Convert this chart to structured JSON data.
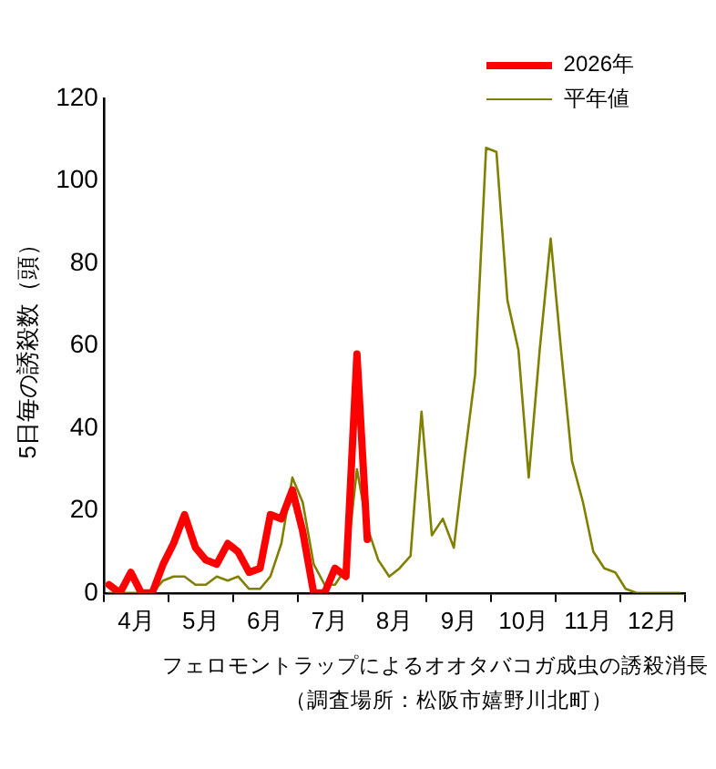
{
  "chart_data": {
    "type": "line",
    "title": "フェロモントラップによるオオタバコガ成虫の誘殺消長",
    "subtitle": "（調査場所：松阪市嬉野川北町）",
    "ylabel": "5日毎の誘殺数（頭）",
    "xlim": [
      4,
      13
    ],
    "xticks": [
      {
        "value": 4,
        "label": null
      },
      {
        "value": 4.5,
        "label": "4月"
      },
      {
        "value": 5,
        "label": null
      },
      {
        "value": 5.5,
        "label": "5月"
      },
      {
        "value": 6,
        "label": null
      },
      {
        "value": 6.5,
        "label": "6月"
      },
      {
        "value": 7,
        "label": null
      },
      {
        "value": 7.5,
        "label": "7月"
      },
      {
        "value": 8,
        "label": null
      },
      {
        "value": 8.5,
        "label": "8月"
      },
      {
        "value": 9,
        "label": null
      },
      {
        "value": 9.5,
        "label": "9月"
      },
      {
        "value": 10,
        "label": null
      },
      {
        "value": 10.5,
        "label": "10月"
      },
      {
        "value": 11,
        "label": null
      },
      {
        "value": 11.5,
        "label": "11月"
      },
      {
        "value": 12,
        "label": null
      },
      {
        "value": 12.5,
        "label": "12月"
      },
      {
        "value": 13,
        "label": null
      }
    ],
    "ylim": [
      0,
      120
    ],
    "yticks": [
      0,
      20,
      40,
      60,
      80,
      100,
      120
    ],
    "grid": false,
    "legend": "top right",
    "marker": "none",
    "line_style": "solid",
    "series": [
      {
        "name": "2026年",
        "color": "#ff0000",
        "x": [
          4.08,
          4.25,
          4.42,
          4.58,
          4.75,
          4.92,
          5.08,
          5.25,
          5.42,
          5.58,
          5.75,
          5.92,
          6.08,
          6.25,
          6.42,
          6.58,
          6.75,
          6.92,
          7.08,
          7.25,
          7.42,
          7.58,
          7.75,
          7.92,
          8.08
        ],
        "values": [
          2,
          0,
          5,
          0,
          0,
          7,
          12,
          19,
          11,
          8,
          7,
          12,
          10,
          5,
          6,
          19,
          18,
          25,
          15,
          0,
          0,
          6,
          4,
          58,
          13
        ]
      },
      {
        "name": "平年値",
        "color": "#808000",
        "x": [
          4.08,
          4.25,
          4.42,
          4.58,
          4.75,
          4.92,
          5.08,
          5.25,
          5.42,
          5.58,
          5.75,
          5.92,
          6.08,
          6.25,
          6.42,
          6.58,
          6.75,
          6.92,
          7.08,
          7.25,
          7.42,
          7.58,
          7.75,
          7.92,
          8.08,
          8.25,
          8.42,
          8.58,
          8.75,
          8.92,
          9.08,
          9.25,
          9.42,
          9.58,
          9.75,
          9.92,
          10.08,
          10.25,
          10.42,
          10.58,
          10.75,
          10.92,
          11.08,
          11.25,
          11.42,
          11.58,
          11.75,
          11.92,
          12.08,
          12.25,
          12.42,
          12.58,
          12.75,
          12.92
        ],
        "values": [
          0,
          0,
          0,
          0,
          0,
          3,
          4,
          4,
          2,
          2,
          4,
          3,
          4,
          1,
          1,
          4,
          12,
          28,
          22,
          7,
          2,
          2,
          6,
          30,
          16,
          8,
          4,
          6,
          9,
          44,
          14,
          18,
          11,
          32,
          53,
          108,
          107,
          71,
          59,
          28,
          59,
          86,
          59,
          32,
          22,
          10,
          6,
          5,
          1,
          0,
          0,
          0,
          0,
          0
        ]
      }
    ]
  }
}
